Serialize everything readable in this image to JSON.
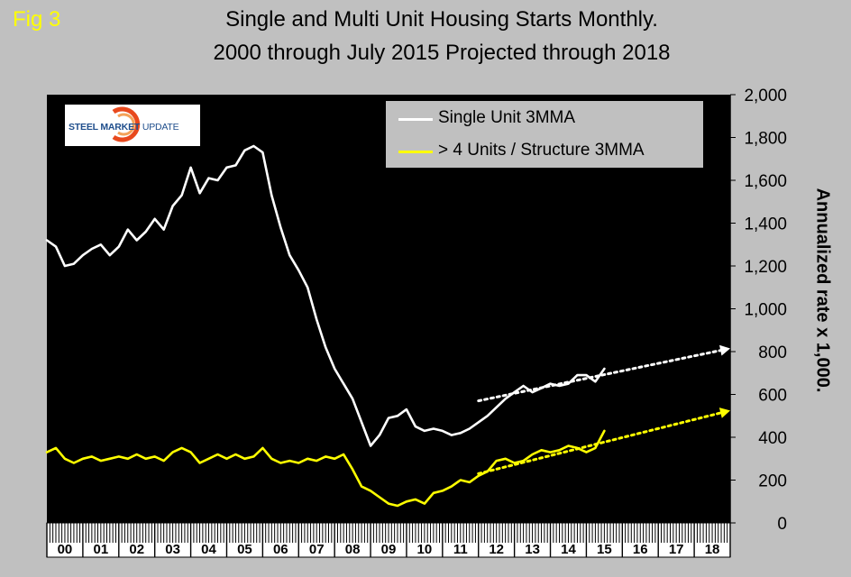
{
  "fig_label": "Fig 3",
  "title_lines": [
    "Single and Multi Unit Housing Starts Monthly.",
    "2000 through July 2015 Projected through 2018"
  ],
  "logo": {
    "word1": "STEEL",
    "word2": "MARKET",
    "word3": "UPDATE"
  },
  "colors": {
    "background": "#c0c0c0",
    "plot_area": "#000000",
    "single": "#ffffff",
    "multi": "#ffff00",
    "fig_label": "#ffff00"
  },
  "chart_data": {
    "type": "line",
    "title": "Single and Multi Unit Housing Starts Monthly. 2000 through July 2015 Projected through 2018",
    "ylabel": "Annualized rate x 1,000.",
    "ylim": [
      0,
      2000
    ],
    "yticks": [
      0,
      200,
      400,
      600,
      800,
      1000,
      1200,
      1400,
      1600,
      1800,
      2000
    ],
    "ytick_labels": [
      "0",
      "200",
      "400",
      "600",
      "800",
      "1,000",
      "1,200",
      "1,400",
      "1,600",
      "1,800",
      "2,000"
    ],
    "xlim": [
      2000,
      2019
    ],
    "categories": [
      "00",
      "01",
      "02",
      "03",
      "04",
      "05",
      "06",
      "07",
      "08",
      "09",
      "10",
      "11",
      "12",
      "13",
      "14",
      "15",
      "16",
      "17",
      "18"
    ],
    "legend_position": "top-right",
    "series": [
      {
        "name": "Single Unit 3MMA",
        "color": "#ffffff",
        "x": [
          2000.0,
          2000.25,
          2000.5,
          2000.75,
          2001.0,
          2001.25,
          2001.5,
          2001.75,
          2002.0,
          2002.25,
          2002.5,
          2002.75,
          2003.0,
          2003.25,
          2003.5,
          2003.75,
          2004.0,
          2004.25,
          2004.5,
          2004.75,
          2005.0,
          2005.25,
          2005.5,
          2005.75,
          2006.0,
          2006.25,
          2006.5,
          2006.75,
          2007.0,
          2007.25,
          2007.5,
          2007.75,
          2008.0,
          2008.25,
          2008.5,
          2008.75,
          2009.0,
          2009.25,
          2009.5,
          2009.75,
          2010.0,
          2010.25,
          2010.5,
          2010.75,
          2011.0,
          2011.25,
          2011.5,
          2011.75,
          2012.0,
          2012.25,
          2012.5,
          2012.75,
          2013.0,
          2013.25,
          2013.5,
          2013.75,
          2014.0,
          2014.25,
          2014.5,
          2014.75,
          2015.0,
          2015.25,
          2015.5
        ],
        "values": [
          1320,
          1290,
          1200,
          1210,
          1250,
          1280,
          1300,
          1250,
          1290,
          1370,
          1320,
          1360,
          1420,
          1370,
          1480,
          1530,
          1660,
          1540,
          1610,
          1600,
          1660,
          1670,
          1740,
          1760,
          1730,
          1530,
          1380,
          1250,
          1180,
          1100,
          950,
          820,
          720,
          650,
          580,
          470,
          360,
          410,
          490,
          500,
          530,
          450,
          430,
          440,
          430,
          410,
          420,
          440,
          470,
          500,
          540,
          580,
          610,
          640,
          610,
          630,
          650,
          640,
          650,
          690,
          690,
          660,
          720
        ]
      },
      {
        "name": "> 4 Units / Structure 3MMA",
        "color": "#ffff00",
        "x": [
          2000.0,
          2000.25,
          2000.5,
          2000.75,
          2001.0,
          2001.25,
          2001.5,
          2001.75,
          2002.0,
          2002.25,
          2002.5,
          2002.75,
          2003.0,
          2003.25,
          2003.5,
          2003.75,
          2004.0,
          2004.25,
          2004.5,
          2004.75,
          2005.0,
          2005.25,
          2005.5,
          2005.75,
          2006.0,
          2006.25,
          2006.5,
          2006.75,
          2007.0,
          2007.25,
          2007.5,
          2007.75,
          2008.0,
          2008.25,
          2008.5,
          2008.75,
          2009.0,
          2009.25,
          2009.5,
          2009.75,
          2010.0,
          2010.25,
          2010.5,
          2010.75,
          2011.0,
          2011.25,
          2011.5,
          2011.75,
          2012.0,
          2012.25,
          2012.5,
          2012.75,
          2013.0,
          2013.25,
          2013.5,
          2013.75,
          2014.0,
          2014.25,
          2014.5,
          2014.75,
          2015.0,
          2015.25,
          2015.5
        ],
        "values": [
          330,
          350,
          300,
          280,
          300,
          310,
          290,
          300,
          310,
          300,
          320,
          300,
          310,
          290,
          330,
          350,
          330,
          280,
          300,
          320,
          300,
          320,
          300,
          310,
          350,
          300,
          280,
          290,
          280,
          300,
          290,
          310,
          300,
          320,
          250,
          170,
          150,
          120,
          90,
          80,
          100,
          110,
          90,
          140,
          150,
          170,
          200,
          190,
          220,
          240,
          290,
          300,
          280,
          290,
          320,
          340,
          330,
          340,
          360,
          350,
          330,
          350,
          430
        ]
      }
    ],
    "projections": [
      {
        "series": "Single Unit 3MMA",
        "color": "#ffffff",
        "x": [
          2012.0,
          2019.0
        ],
        "values": [
          570,
          815
        ]
      },
      {
        "series": "> 4 Units / Structure 3MMA",
        "color": "#ffff00",
        "x": [
          2012.0,
          2019.0
        ],
        "values": [
          230,
          525
        ]
      }
    ]
  }
}
